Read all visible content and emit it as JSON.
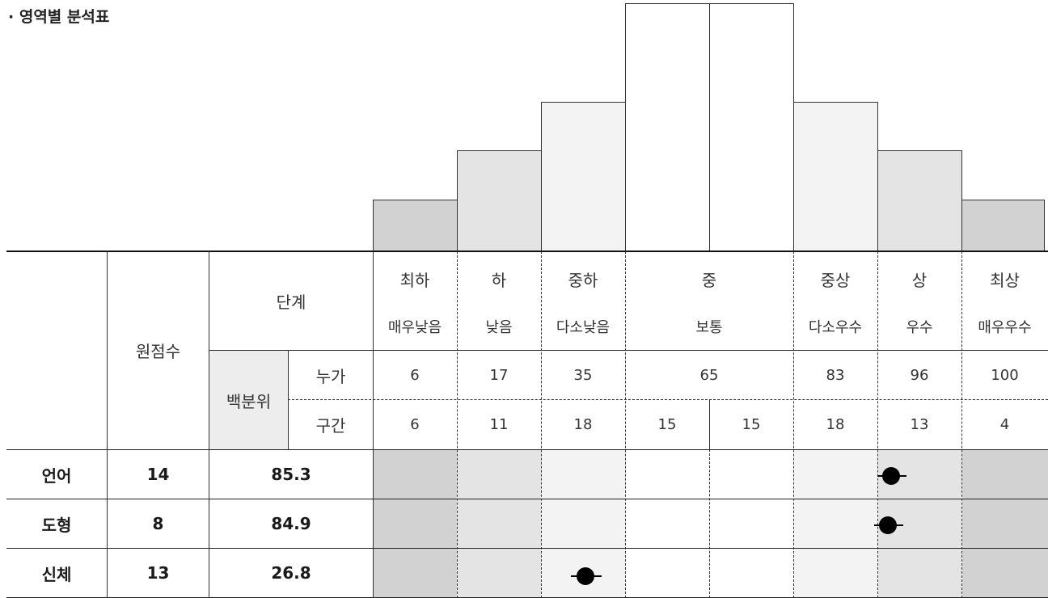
{
  "title": "· 영역별 분석표",
  "header": {
    "step_label": "단계",
    "raw_score_label": "원점수",
    "percentile_label": "백분위",
    "cumulative_label": "누가",
    "interval_label": "구간"
  },
  "levels": [
    {
      "name": "최하",
      "desc": "매우낮음",
      "cumulative": "6",
      "interval": "6"
    },
    {
      "name": "하",
      "desc": "낮음",
      "cumulative": "17",
      "interval": "11"
    },
    {
      "name": "중하",
      "desc": "다소낮음",
      "cumulative": "35",
      "interval": "18"
    },
    {
      "name": "중",
      "desc": "보통",
      "cumulative": "65",
      "interval_a": "15",
      "interval_b": "15"
    },
    {
      "name": "중상",
      "desc": "다소우수",
      "cumulative": "83",
      "interval": "18"
    },
    {
      "name": "상",
      "desc": "우수",
      "cumulative": "96",
      "interval": "13"
    },
    {
      "name": "최상",
      "desc": "매우우수",
      "cumulative": "100",
      "interval": "4"
    }
  ],
  "rows": [
    {
      "area": "언어",
      "raw": "14",
      "percentile": "85.3"
    },
    {
      "area": "도형",
      "raw": "8",
      "percentile": "84.9"
    },
    {
      "area": "신체",
      "raw": "13",
      "percentile": "26.8"
    }
  ],
  "colors": {
    "level_1": "#d2d2d2",
    "level_2": "#e4e4e4",
    "level_3": "#f3f3f3",
    "level_4": "#ffffff",
    "marker": "#000000"
  }
}
